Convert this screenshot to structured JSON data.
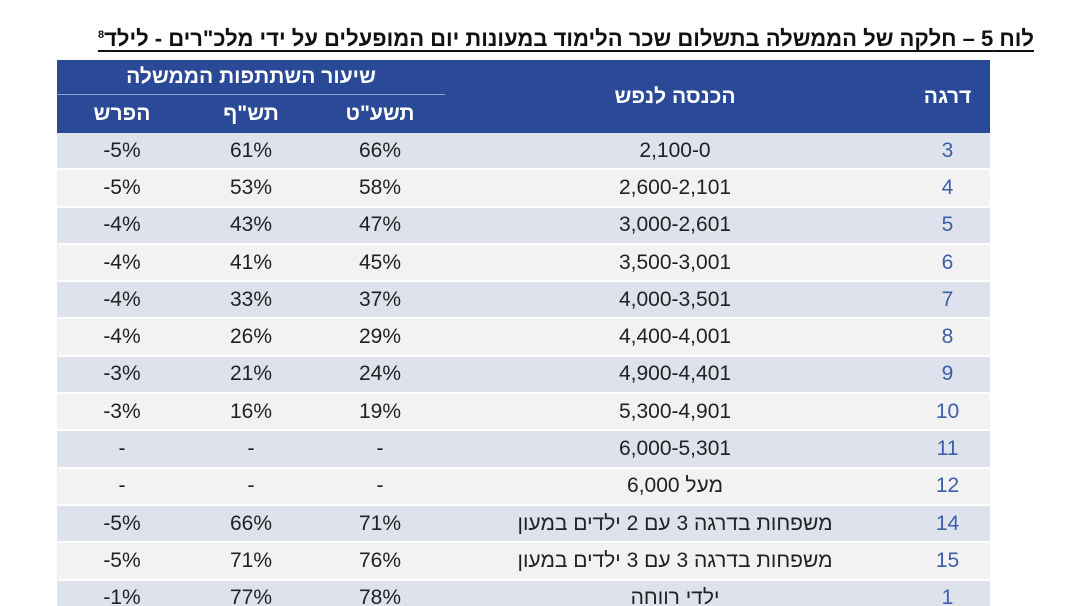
{
  "title": {
    "text": "לוח 5 – חלקה של הממשלה בתשלום שכר הלימוד במעונות יום המופעלים על ידי מלכ\"רים - לילד",
    "footnote": "8"
  },
  "table": {
    "header": {
      "level": "דרגה",
      "income": "הכנסה לנפש",
      "share_group": "שיעור השתתפות הממשלה",
      "year1": "תשע\"ט",
      "year2": "תש\"ף",
      "diff": "הפרש"
    },
    "rows": [
      {
        "level": "3",
        "income": "2,100-0",
        "year1": "66%",
        "year2": "61%",
        "diff": "-5%"
      },
      {
        "level": "4",
        "income": "2,600-2,101",
        "year1": "58%",
        "year2": "53%",
        "diff": "-5%"
      },
      {
        "level": "5",
        "income": "3,000-2,601",
        "year1": "47%",
        "year2": "43%",
        "diff": "-4%"
      },
      {
        "level": "6",
        "income": "3,500-3,001",
        "year1": "45%",
        "year2": "41%",
        "diff": "-4%"
      },
      {
        "level": "7",
        "income": "4,000-3,501",
        "year1": "37%",
        "year2": "33%",
        "diff": "-4%"
      },
      {
        "level": "8",
        "income": "4,400-4,001",
        "year1": "29%",
        "year2": "26%",
        "diff": "-4%"
      },
      {
        "level": "9",
        "income": "4,900-4,401",
        "year1": "24%",
        "year2": "21%",
        "diff": "-3%"
      },
      {
        "level": "10",
        "income": "5,300-4,901",
        "year1": "19%",
        "year2": "16%",
        "diff": "-3%"
      },
      {
        "level": "11",
        "income": "6,000-5,301",
        "year1": "-",
        "year2": "-",
        "diff": "-"
      },
      {
        "level": "12",
        "income": "מעל 6,000",
        "year1": "-",
        "year2": "-",
        "diff": "-"
      },
      {
        "level": "14",
        "income": "משפחות בדרגה 3 עם 2 ילדים במעון",
        "year1": "71%",
        "year2": "66%",
        "diff": "-5%"
      },
      {
        "level": "15",
        "income": "משפחות בדרגה 3 עם 3 ילדים במעון",
        "year1": "76%",
        "year2": "71%",
        "diff": "-5%"
      },
      {
        "level": "1",
        "income": "ילדי רווחה",
        "year1": "78%",
        "year2": "77%",
        "diff": "-1%"
      }
    ]
  },
  "colors": {
    "header_bg": "#2a4a97",
    "row_odd": "#dde2ec",
    "row_even": "#f2f2f2",
    "level_text": "#3d5ea8"
  }
}
